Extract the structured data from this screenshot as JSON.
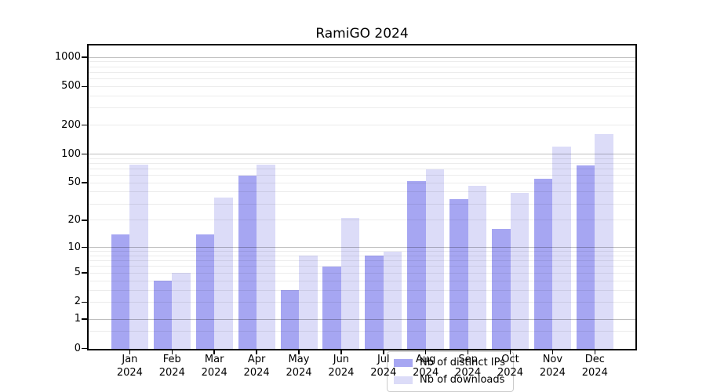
{
  "title": "RamiGO 2024",
  "axes": {
    "y_tick_labels": [
      "0",
      "1",
      "2",
      "5",
      "10",
      "20",
      "50",
      "100",
      "200",
      "500",
      "1000"
    ],
    "x_tick_labels_line1": [
      "Jan",
      "Feb",
      "Mar",
      "Apr",
      "May",
      "Jun",
      "Jul",
      "Aug",
      "Sep",
      "Oct",
      "Nov",
      "Dec"
    ],
    "x_tick_labels_line2": "2024"
  },
  "legend": {
    "items": [
      "Nb of distinct IPs",
      "Nb of downloads"
    ]
  },
  "colors": {
    "distinct_ips_bar": "#a6a6f2",
    "downloads_bar": "#dcdcf8",
    "axis": "#000000",
    "legend_border": "#cccccc"
  },
  "chart_data": {
    "type": "bar",
    "title": "RamiGO 2024",
    "categories": [
      "Jan 2024",
      "Feb 2024",
      "Mar 2024",
      "Apr 2024",
      "May 2024",
      "Jun 2024",
      "Jul 2024",
      "Aug 2024",
      "Sep 2024",
      "Oct 2024",
      "Nov 2024",
      "Dec 2024"
    ],
    "series": [
      {
        "name": "Nb of distinct IPs",
        "color": "#a6a6f2",
        "values": [
          14,
          4,
          14,
          60,
          3,
          6,
          8,
          52,
          34,
          16,
          55,
          76
        ]
      },
      {
        "name": "Nb of downloads",
        "color": "#dcdcf8",
        "values": [
          77,
          5,
          35,
          77,
          8,
          21,
          9,
          70,
          47,
          39,
          120,
          162
        ]
      }
    ],
    "xlabel": "",
    "ylabel": "",
    "y_scale": "log1p",
    "y_axis_ticks": [
      0,
      1,
      2,
      5,
      10,
      20,
      50,
      100,
      200,
      500,
      1000
    ],
    "y_major_gridlines": [
      1,
      10,
      100,
      1000
    ],
    "y_minor_gridlines": [
      0.5,
      2,
      3,
      4,
      5,
      6,
      7,
      8,
      9,
      20,
      30,
      40,
      50,
      60,
      70,
      80,
      90,
      200,
      300,
      400,
      500,
      600,
      700,
      800,
      900
    ],
    "ylim": [
      0,
      1340
    ],
    "grid": true,
    "legend_position": "lower center"
  }
}
